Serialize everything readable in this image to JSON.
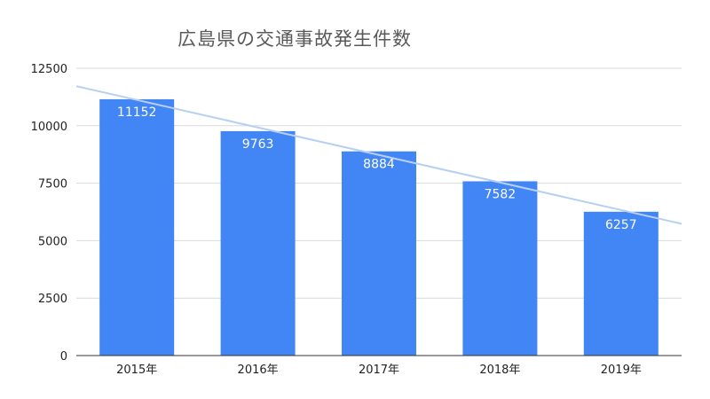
{
  "chart_data": {
    "type": "bar",
    "title": "広島県の交通事故発生件数",
    "categories": [
      "2015年",
      "2016年",
      "2017年",
      "2018年",
      "2019年"
    ],
    "values": [
      11152,
      9763,
      8884,
      7582,
      6257
    ],
    "data_labels": [
      "11152",
      "9763",
      "8884",
      "7582",
      "6257"
    ],
    "xlabel": "",
    "ylabel": "",
    "ylim": [
      0,
      12500
    ],
    "y_ticks": [
      0,
      2500,
      5000,
      7500,
      10000,
      12500
    ],
    "y_tick_labels": [
      "0",
      "2500",
      "5000",
      "7500",
      "10000",
      "12500"
    ],
    "grid": true,
    "legend": "none",
    "trendline": {
      "type": "linear",
      "color": "#b7cff2"
    },
    "colors": {
      "bar": "#4285f4",
      "label": "#ffffff",
      "grid": "#d9d9d9",
      "axis_text": "#222222",
      "title": "#595959"
    }
  }
}
